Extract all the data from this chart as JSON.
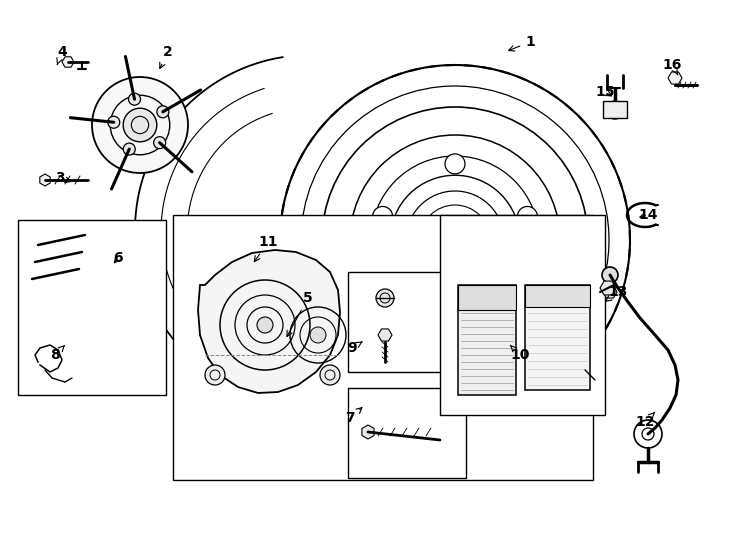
{
  "bg_color": "#ffffff",
  "lc": "#000000",
  "figsize": [
    7.34,
    5.4
  ],
  "dpi": 100,
  "labels": {
    "1": [
      530,
      498,
      505,
      488
    ],
    "2": [
      168,
      488,
      158,
      468
    ],
    "3": [
      60,
      362,
      72,
      358
    ],
    "4": [
      62,
      488,
      57,
      475
    ],
    "5": [
      308,
      242,
      285,
      200
    ],
    "6": [
      118,
      282,
      112,
      274
    ],
    "7": [
      350,
      122,
      365,
      135
    ],
    "8": [
      55,
      185,
      65,
      195
    ],
    "9": [
      352,
      192,
      365,
      200
    ],
    "10": [
      520,
      185,
      510,
      195
    ],
    "11": [
      268,
      298,
      252,
      275
    ],
    "12": [
      645,
      118,
      655,
      128
    ],
    "13": [
      618,
      248,
      605,
      238
    ],
    "14": [
      648,
      325,
      636,
      322
    ],
    "15": [
      605,
      448,
      615,
      442
    ],
    "16": [
      672,
      475,
      678,
      465
    ]
  }
}
